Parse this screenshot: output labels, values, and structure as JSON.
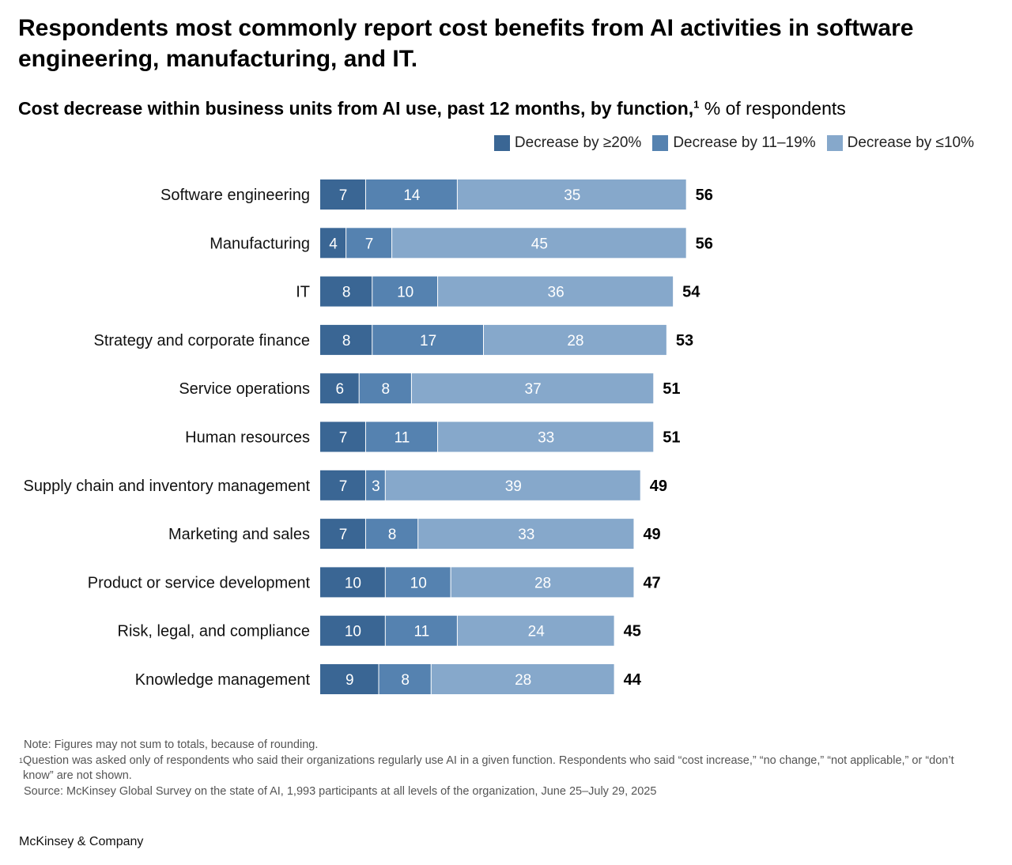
{
  "title": "Respondents most commonly report cost benefits from AI activities in software engineering, manufacturing, and IT.",
  "subtitle_bold": "Cost decrease within business units from AI use, past 12 months, by function,",
  "subtitle_sup": "1",
  "subtitle_rest": " % of respondents",
  "colors": {
    "dark": "#3a6694",
    "mid": "#5582b0",
    "light": "#86a8cb"
  },
  "chart_data": {
    "type": "bar",
    "orientation": "horizontal-stacked",
    "categories": [
      "Software engineering",
      "Manufacturing",
      "IT",
      "Strategy and corporate finance",
      "Service operations",
      "Human resources",
      "Supply chain and inventory management",
      "Marketing and sales",
      "Product or service development",
      "Risk, legal, and compliance",
      "Knowledge management"
    ],
    "series": [
      {
        "name": "Decrease by ≥20%",
        "values": [
          7,
          4,
          8,
          8,
          6,
          7,
          7,
          7,
          10,
          10,
          9
        ]
      },
      {
        "name": "Decrease by 11–19%",
        "values": [
          14,
          7,
          10,
          17,
          8,
          11,
          3,
          8,
          10,
          11,
          8
        ]
      },
      {
        "name": "Decrease by ≤10%",
        "values": [
          35,
          45,
          36,
          28,
          37,
          33,
          39,
          33,
          28,
          24,
          28
        ]
      }
    ],
    "totals": [
      56,
      56,
      54,
      53,
      51,
      51,
      49,
      49,
      47,
      45,
      44
    ],
    "legend_position": "top-right",
    "xlim": [
      0,
      60
    ]
  },
  "notes": {
    "note": "Note: Figures may not sum to totals, because of rounding.",
    "footnote_mark": "1",
    "footnote": "Question was asked only of respondents who said their organizations regularly use AI in a given function. Respondents who said “cost increase,” “no change,” “not applicable,” or “don’t know” are not shown.",
    "source": "Source: McKinsey Global Survey on the state of AI, 1,993 participants at all levels of the organization, June 25–July 29, 2025"
  },
  "brand": "McKinsey & Company"
}
